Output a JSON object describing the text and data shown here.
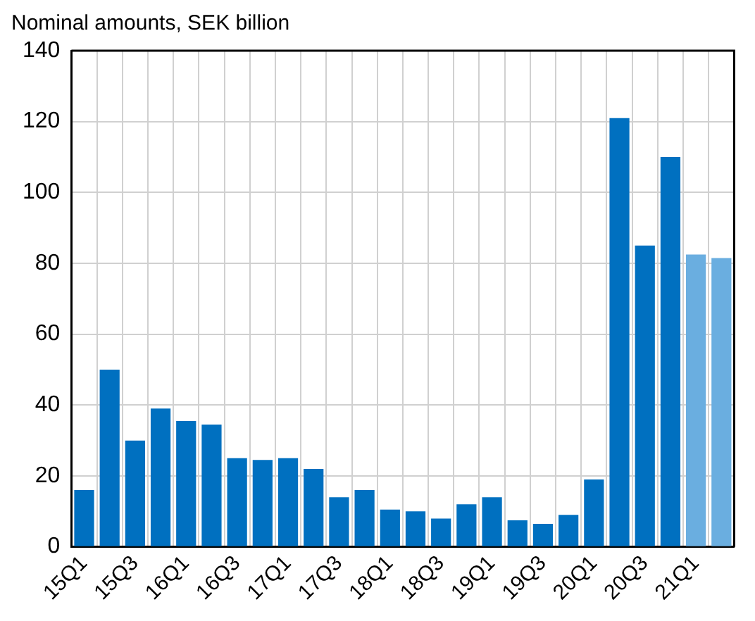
{
  "chart_data": {
    "type": "bar",
    "title": "Nominal amounts, SEK billion",
    "categories": [
      "15Q1",
      null,
      "15Q3",
      null,
      "16Q1",
      null,
      "16Q3",
      null,
      "17Q1",
      null,
      "17Q3",
      null,
      "18Q1",
      null,
      "18Q3",
      null,
      "19Q1",
      null,
      "19Q3",
      null,
      "20Q1",
      null,
      "20Q3",
      null,
      "21Q1",
      null
    ],
    "values": [
      16,
      50,
      30,
      39,
      35.5,
      34.5,
      25,
      24.5,
      25,
      22,
      14,
      16,
      10.5,
      10,
      8,
      12,
      14,
      7.5,
      6.5,
      9,
      19,
      121,
      85,
      110,
      82.5,
      81.5
    ],
    "colors": [
      "#0070c0",
      "#0070c0",
      "#0070c0",
      "#0070c0",
      "#0070c0",
      "#0070c0",
      "#0070c0",
      "#0070c0",
      "#0070c0",
      "#0070c0",
      "#0070c0",
      "#0070c0",
      "#0070c0",
      "#0070c0",
      "#0070c0",
      "#0070c0",
      "#0070c0",
      "#0070c0",
      "#0070c0",
      "#0070c0",
      "#0070c0",
      "#0070c0",
      "#0070c0",
      "#0070c0",
      "#6aaee0",
      "#6aaee0"
    ],
    "ylim": [
      0,
      140
    ],
    "yticks": [
      0,
      20,
      40,
      60,
      80,
      100,
      120,
      140
    ],
    "grid": true,
    "legend": false
  }
}
